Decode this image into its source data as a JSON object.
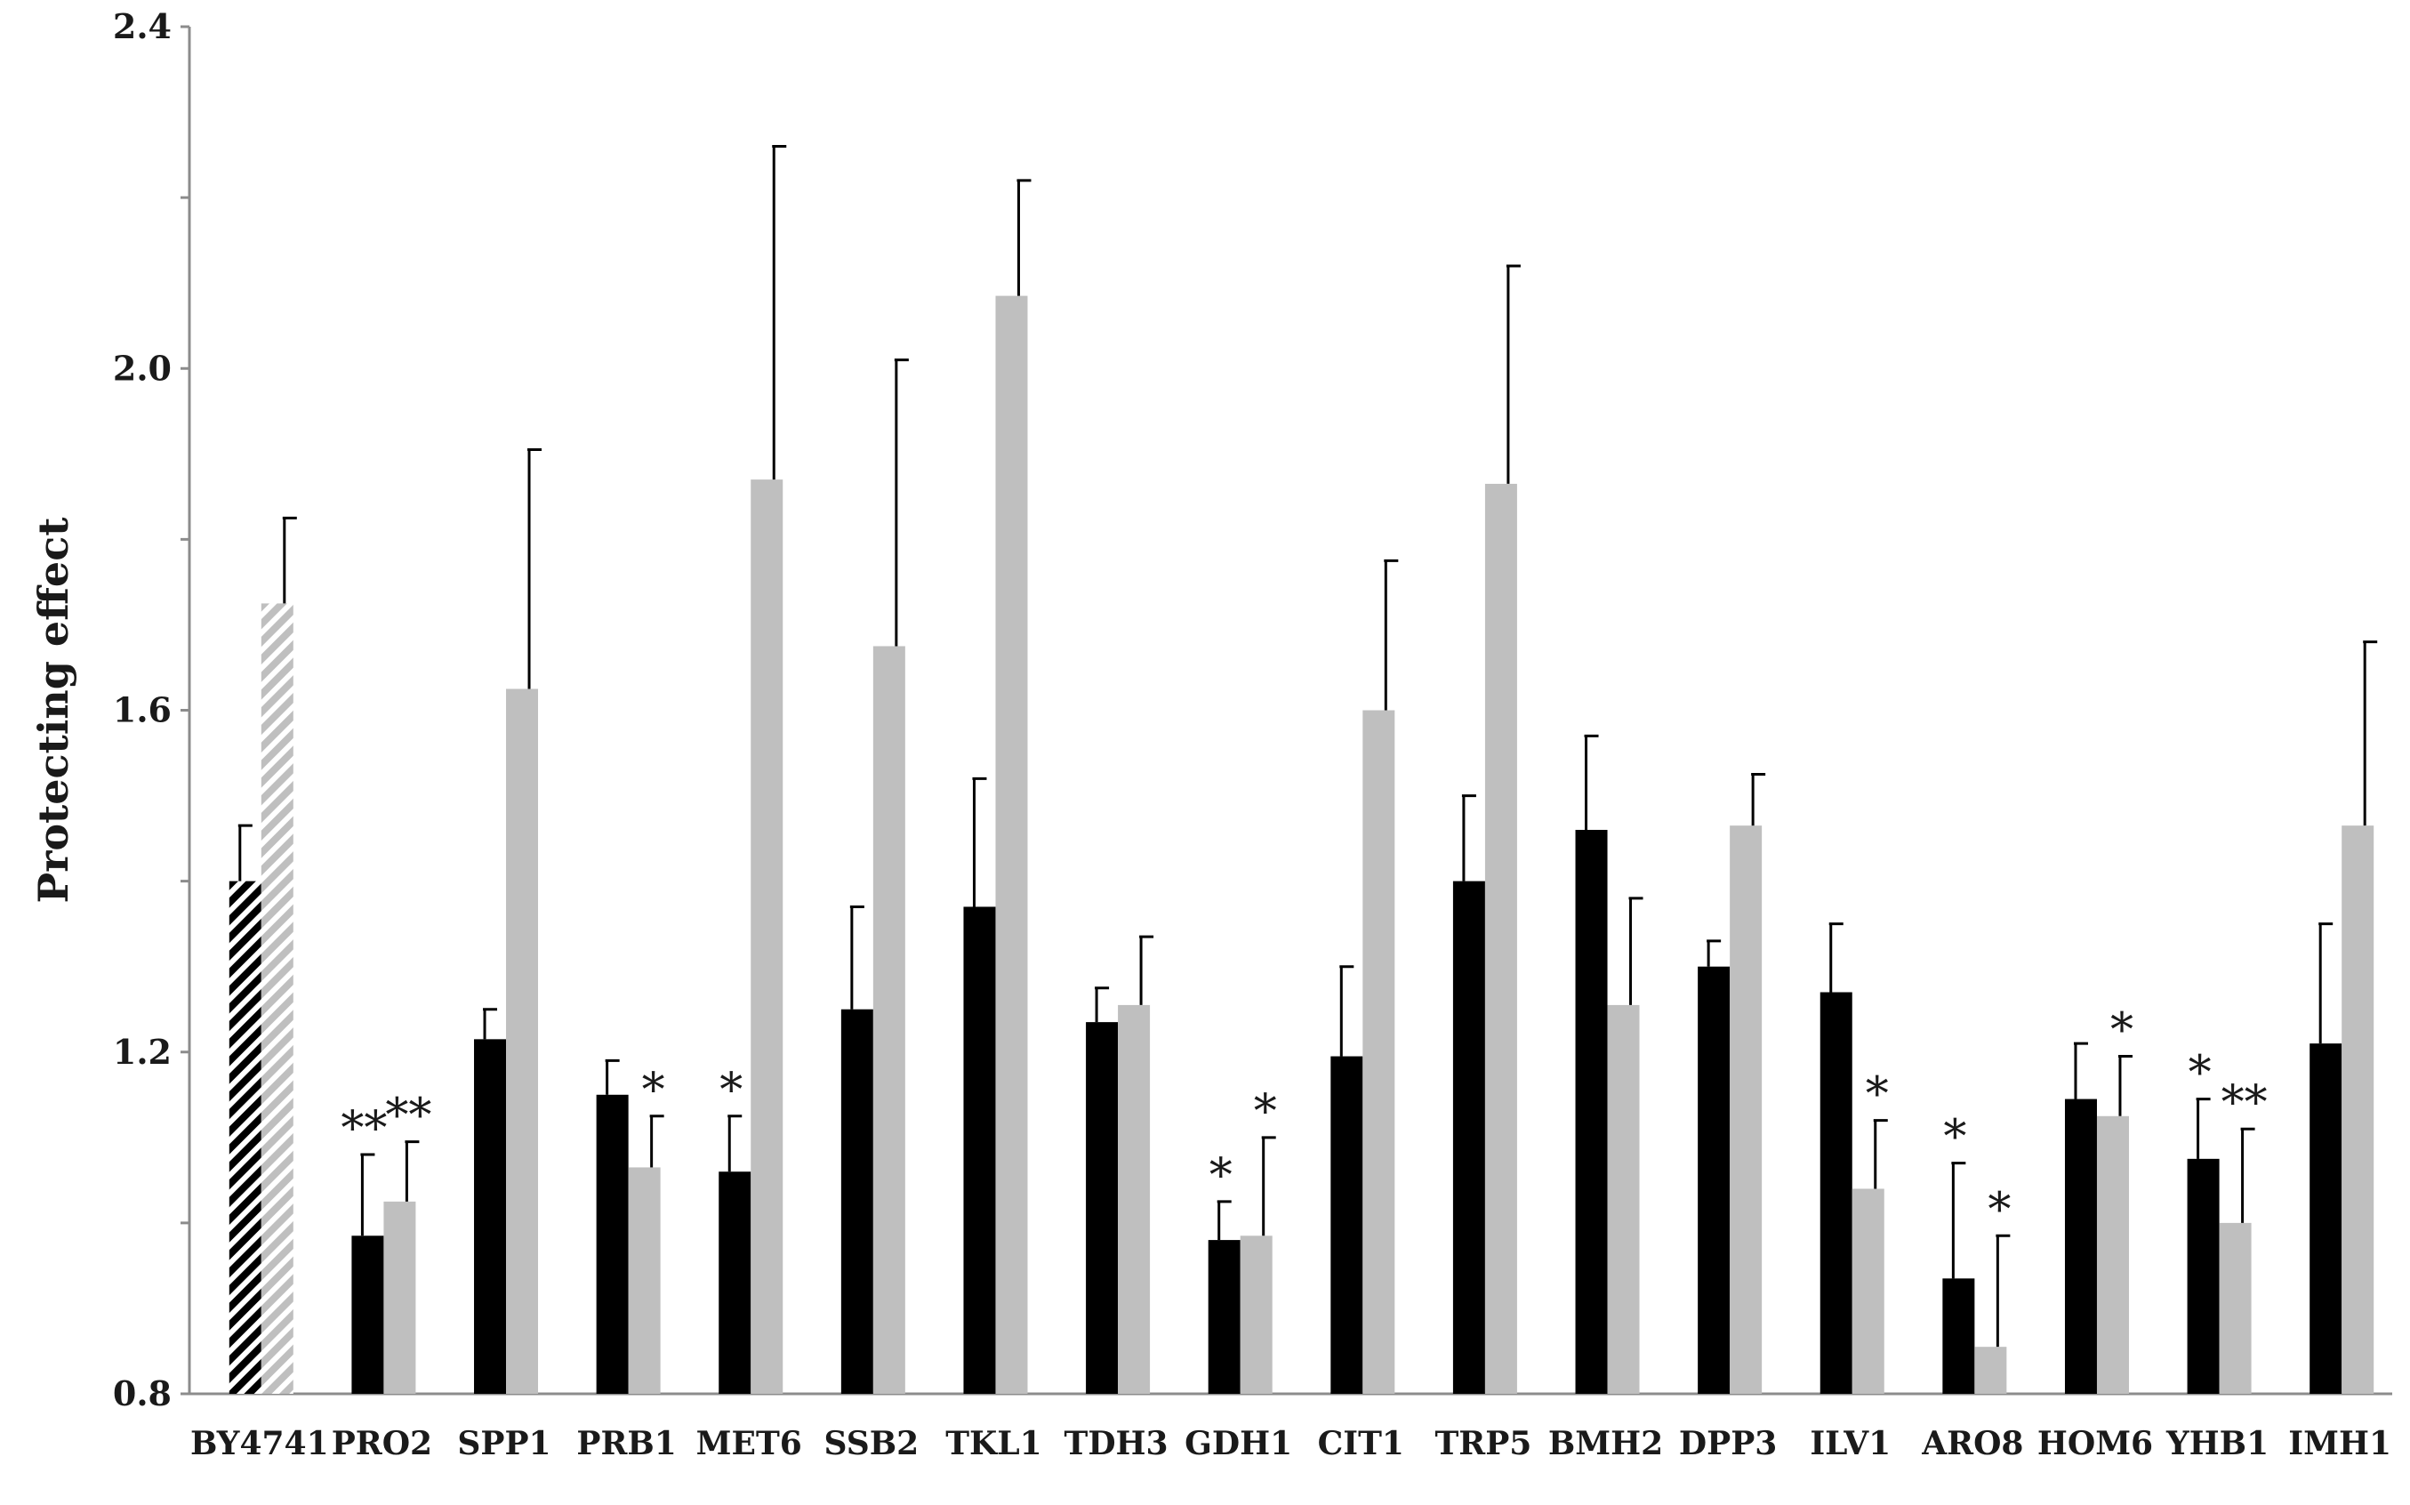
{
  "chart_data": {
    "type": "bar",
    "title": "",
    "xlabel": "",
    "ylabel": "Protecting effect",
    "ylim": [
      0.8,
      2.4
    ],
    "yticks": [
      "0.8",
      "1.2",
      "1.6",
      "2.0",
      "2.4"
    ],
    "categories": [
      "BY4741",
      "PRO2",
      "SPP1",
      "PRB1",
      "MET6",
      "SSB2",
      "TKL1",
      "TDH3",
      "GDH1",
      "CIT1",
      "TRP5",
      "BMH2",
      "DPP3",
      "ILV1",
      "ARO8",
      "HOM6",
      "YHB1",
      "IMH1"
    ],
    "series": [
      {
        "color": "#000000",
        "values": [
          1.4,
          0.985,
          1.215,
          1.15,
          1.06,
          1.25,
          1.37,
          1.235,
          0.98,
          1.195,
          1.4,
          1.46,
          1.3,
          1.27,
          0.935,
          1.145,
          1.075,
          1.21
        ],
        "errors": [
          0.065,
          0.095,
          0.035,
          0.04,
          0.065,
          0.12,
          0.15,
          0.04,
          0.045,
          0.105,
          0.1,
          0.11,
          0.03,
          0.08,
          0.135,
          0.065,
          0.07,
          0.14
        ],
        "significance": [
          "",
          "**",
          "",
          "",
          "*",
          "",
          "",
          "",
          "*",
          "",
          "",
          "",
          "",
          "",
          "*",
          "",
          "*",
          ""
        ]
      },
      {
        "color": "#bfbfbf",
        "values": [
          1.725,
          1.025,
          1.625,
          1.065,
          1.87,
          1.675,
          2.085,
          1.255,
          0.985,
          1.6,
          1.865,
          1.255,
          1.465,
          1.04,
          0.855,
          1.125,
          1.0,
          1.465
        ],
        "errors": [
          0.1,
          0.07,
          0.28,
          0.06,
          0.39,
          0.335,
          0.135,
          0.08,
          0.115,
          0.175,
          0.255,
          0.125,
          0.06,
          0.08,
          0.13,
          0.07,
          0.11,
          0.215
        ],
        "significance": [
          "",
          "**",
          "",
          "*",
          "",
          "",
          "",
          "",
          "*",
          "",
          "",
          "",
          "",
          "*",
          "*",
          "*",
          "**",
          ""
        ]
      }
    ],
    "hatched_categories": [
      "BY4741"
    ],
    "grid": false,
    "legend": "none"
  }
}
